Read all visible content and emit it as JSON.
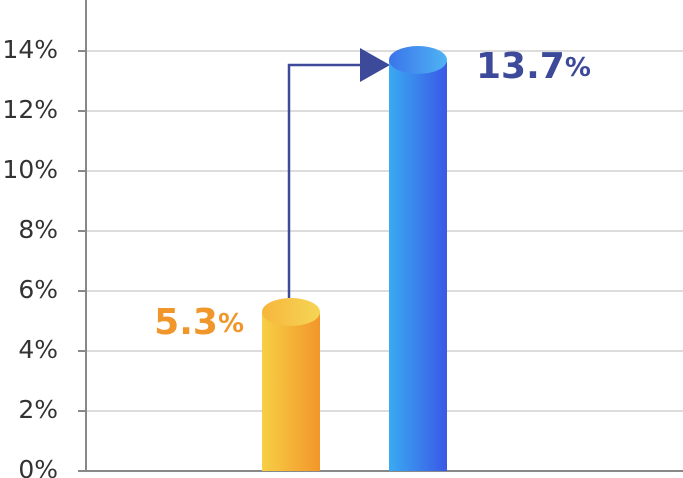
{
  "chart_data": {
    "type": "bar",
    "categories": [
      null,
      null
    ],
    "values": [
      5.3,
      13.7
    ],
    "value_labels": [
      "5.3%",
      "13.7%"
    ],
    "colors": [
      "#f29a2a",
      "#3a62e8"
    ],
    "ylim": [
      0,
      15.7
    ],
    "yticks": [
      {
        "value": 0,
        "label": "0%"
      },
      {
        "value": 2,
        "label": "2%"
      },
      {
        "value": 4,
        "label": "4%"
      },
      {
        "value": 6,
        "label": "6%"
      },
      {
        "value": 8,
        "label": "8%"
      },
      {
        "value": 10,
        "label": "10%"
      },
      {
        "value": 12,
        "label": "12%"
      },
      {
        "value": 14,
        "label": "14%"
      }
    ],
    "grid": true
  }
}
